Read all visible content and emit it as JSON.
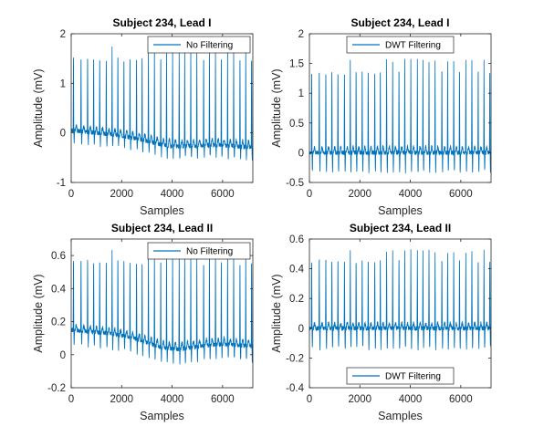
{
  "chart_data": [
    {
      "type": "line",
      "title": "Subject 234, Lead I",
      "xlabel": "Samples",
      "ylabel": "Amplitude (mV)",
      "xlim": [
        0,
        7200
      ],
      "ylim": [
        -1,
        2
      ],
      "xticks": [
        0,
        2000,
        4000,
        6000
      ],
      "xtick_labels": [
        "0",
        "2000",
        "4000",
        "6000"
      ],
      "yticks": [
        -1,
        0,
        1,
        2
      ],
      "ytick_labels": [
        "-1",
        "0",
        "1",
        "2"
      ],
      "legend_location": "top-right",
      "grid": false,
      "color": "#0072bd",
      "series": [
        {
          "name": "No Filtering",
          "r_peak_samples": [
            90,
            390,
            650,
            890,
            1130,
            1390,
            1620,
            1850,
            2090,
            2330,
            2590,
            2810,
            3060,
            3300,
            3550,
            3780,
            4020,
            4280,
            4500,
            4740,
            4980,
            5250,
            5480,
            5720,
            5950,
            6200,
            6440,
            6690,
            6920,
            7150
          ],
          "r_peak_amplitude": 1.73,
          "baseline_start": 0.05,
          "baseline_end": -0.3,
          "baseline_min": -0.5
        }
      ]
    },
    {
      "type": "line",
      "title": "Subject 234, Lead I",
      "xlabel": "Samples",
      "ylabel": "Amplitude (mV)",
      "xlim": [
        0,
        7200
      ],
      "ylim": [
        -0.5,
        2
      ],
      "xticks": [
        0,
        2000,
        4000,
        6000
      ],
      "xtick_labels": [
        "0",
        "2000",
        "4000",
        "6000"
      ],
      "yticks": [
        -0.5,
        0,
        0.5,
        1,
        1.5,
        2
      ],
      "ytick_labels": [
        "-0.5",
        "0",
        "0.5",
        "1",
        "1.5",
        "2"
      ],
      "legend_location": "top",
      "grid": false,
      "color": "#0072bd",
      "series": [
        {
          "name": "DWT Filtering",
          "r_peak_samples": [
            90,
            390,
            650,
            890,
            1130,
            1390,
            1620,
            1850,
            2090,
            2330,
            2590,
            2810,
            3060,
            3300,
            3550,
            3780,
            4020,
            4280,
            4500,
            4740,
            4980,
            5250,
            5480,
            5720,
            5950,
            6200,
            6440,
            6690,
            6920,
            7150
          ],
          "r_peak_amplitude": 1.55,
          "baseline": 0.0,
          "trough": -0.35
        }
      ]
    },
    {
      "type": "line",
      "title": "Subject 234, Lead II",
      "xlabel": "Samples",
      "ylabel": "Amplitude (mV)",
      "xlim": [
        0,
        7200
      ],
      "ylim": [
        -0.2,
        0.7
      ],
      "xticks": [
        0,
        2000,
        4000,
        6000
      ],
      "xtick_labels": [
        "0",
        "2000",
        "4000",
        "6000"
      ],
      "yticks": [
        -0.2,
        0,
        0.2,
        0.4,
        0.6
      ],
      "ytick_labels": [
        "-0.2",
        "0",
        "0.2",
        "0.4",
        "0.6"
      ],
      "legend_location": "top-right",
      "grid": false,
      "color": "#0072bd",
      "series": [
        {
          "name": "No Filtering",
          "r_peak_samples": [
            90,
            390,
            650,
            890,
            1130,
            1390,
            1620,
            1850,
            2090,
            2330,
            2590,
            2810,
            3060,
            3300,
            3550,
            3780,
            4020,
            4280,
            4500,
            4740,
            4980,
            5250,
            5480,
            5720,
            5950,
            6200,
            6440,
            6690,
            6920,
            7150
          ],
          "r_peak_amplitude": 0.63,
          "baseline_start": 0.15,
          "baseline_end": 0.05,
          "baseline_min": -0.05
        }
      ]
    },
    {
      "type": "line",
      "title": "Subject 234, Lead II",
      "xlabel": "Samples",
      "ylabel": "Amplitude (mV)",
      "xlim": [
        0,
        7200
      ],
      "ylim": [
        -0.4,
        0.6
      ],
      "xticks": [
        0,
        2000,
        4000,
        6000
      ],
      "xtick_labels": [
        "0",
        "2000",
        "4000",
        "6000"
      ],
      "yticks": [
        -0.4,
        -0.2,
        0,
        0.2,
        0.4,
        0.6
      ],
      "ytick_labels": [
        "-0.4",
        "-0.2",
        "0",
        "0.2",
        "0.4",
        "0.6"
      ],
      "legend_location": "bottom",
      "grid": false,
      "color": "#0072bd",
      "series": [
        {
          "name": "DWT Filtering",
          "r_peak_samples": [
            90,
            390,
            650,
            890,
            1130,
            1390,
            1620,
            1850,
            2090,
            2330,
            2590,
            2810,
            3060,
            3300,
            3550,
            3780,
            4020,
            4280,
            4500,
            4740,
            4980,
            5250,
            5480,
            5720,
            5950,
            6200,
            6440,
            6690,
            6920,
            7150
          ],
          "r_peak_amplitude": 0.52,
          "baseline": 0.0,
          "trough": -0.15
        }
      ]
    }
  ]
}
